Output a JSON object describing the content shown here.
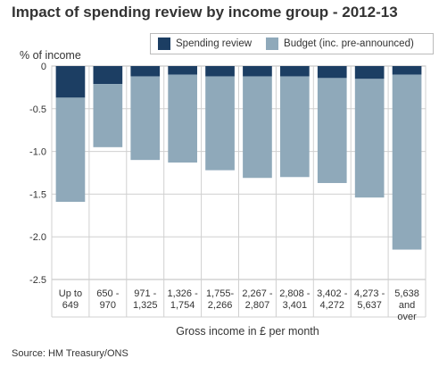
{
  "title": "Impact of spending review by income group - 2012-13",
  "source": "Source: HM Treasury/ONS",
  "chart_data": {
    "type": "bar",
    "stacked": true,
    "title": "Impact of spending review by income group - 2012-13",
    "ylabel": "% of income",
    "xlabel": "Gross income in £ per month",
    "ylim": [
      -2.5,
      0
    ],
    "yticks": [
      0,
      -0.5,
      -1.0,
      -1.5,
      -2.0,
      -2.5
    ],
    "ytick_labels": [
      "0",
      "-0.5",
      "-1.0",
      "-1.5",
      "-2.0",
      "-2.5"
    ],
    "grid": true,
    "legend_position": "top-right",
    "categories": [
      [
        "Up to",
        "649"
      ],
      [
        "650 -",
        "970"
      ],
      [
        "971 -",
        "1,325"
      ],
      [
        "1,326 -",
        "1,754"
      ],
      [
        "1,755-",
        "2,266"
      ],
      [
        "2,267 -",
        "2,807"
      ],
      [
        "2,808 -",
        "3,401"
      ],
      [
        "3,402 -",
        "4,272"
      ],
      [
        "4,273 -",
        "5,637"
      ],
      [
        "5,638",
        "and",
        "over"
      ]
    ],
    "series": [
      {
        "name": "Spending review",
        "color": "#1c3e63",
        "values": [
          -0.37,
          -0.21,
          -0.12,
          -0.1,
          -0.12,
          -0.12,
          -0.12,
          -0.14,
          -0.15,
          -0.1
        ]
      },
      {
        "name": "Budget (inc. pre-announced)",
        "color": "#8fa9ba",
        "values": [
          -1.22,
          -0.74,
          -0.98,
          -1.03,
          -1.1,
          -1.19,
          -1.18,
          -1.23,
          -1.39,
          -2.05
        ]
      }
    ]
  }
}
